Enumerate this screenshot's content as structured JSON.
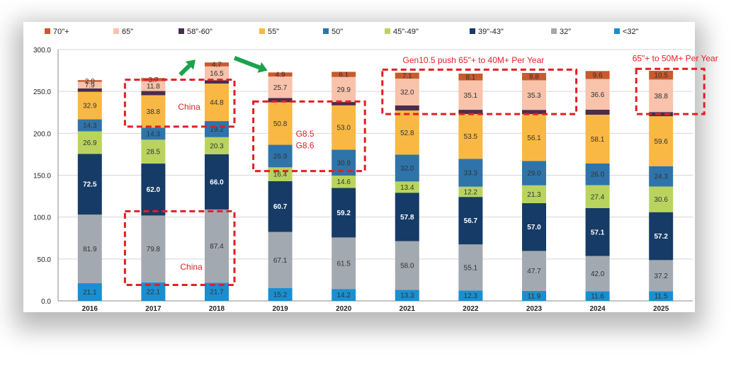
{
  "chart_data": {
    "type": "bar",
    "stacked": true,
    "categories": [
      "2016",
      "2017",
      "2018",
      "2019",
      "2020",
      "2021",
      "2022",
      "2023",
      "2024",
      "2025"
    ],
    "ylim": [
      0,
      300
    ],
    "yticks": [
      "0.0",
      "50.0",
      "100.0",
      "150.0",
      "200.0",
      "250.0",
      "300.0"
    ],
    "grid": true,
    "legend_position": "top",
    "series": [
      {
        "name": "<32\"",
        "color": "#1a8fd0",
        "values": [
          21.1,
          22.1,
          21.7,
          15.2,
          14.2,
          13.3,
          12.3,
          11.9,
          11.6,
          11.5
        ]
      },
      {
        "name": "32\"",
        "color": "#a3a9b0",
        "values": [
          81.9,
          79.8,
          87.4,
          67.1,
          61.5,
          58.0,
          55.1,
          47.7,
          42.0,
          37.2
        ]
      },
      {
        "name": "39\"-43\"",
        "color": "#163b66",
        "values": [
          72.5,
          62.0,
          66.0,
          60.7,
          59.2,
          57.8,
          56.7,
          57.0,
          57.1,
          57.2
        ]
      },
      {
        "name": "45\"-49\"",
        "color": "#b9d45e",
        "values": [
          26.9,
          28.5,
          20.3,
          16.4,
          14.6,
          13.4,
          12.2,
          21.3,
          27.4,
          30.6
        ]
      },
      {
        "name": "50\"",
        "color": "#2e74aa",
        "values": [
          14.3,
          14.3,
          19.2,
          26.9,
          30.9,
          32.0,
          33.3,
          29.0,
          26.0,
          24.3
        ]
      },
      {
        "name": "55\"",
        "color": "#f9b843",
        "values": [
          32.9,
          38.8,
          44.8,
          50.8,
          53.0,
          52.8,
          53.5,
          56.1,
          58.1,
          59.6
        ]
      },
      {
        "name": "58\"-60\"",
        "color": "#4a2c4f",
        "values": [
          4.0,
          5.0,
          4.0,
          5.0,
          4.0,
          6.0,
          5.0,
          5.0,
          6.0,
          5.0
        ]
      },
      {
        "name": "65\"",
        "color": "#f8c2ab",
        "values": [
          7.9,
          11.8,
          16.5,
          25.7,
          29.9,
          32.0,
          35.1,
          35.3,
          36.6,
          38.8
        ]
      },
      {
        "name": "70\"+",
        "color": "#c85a2d",
        "values": [
          2.0,
          3.7,
          4.7,
          4.9,
          6.1,
          7.1,
          8.1,
          8.8,
          9.6,
          10.5
        ]
      }
    ],
    "value_labels": [
      [
        "21.1",
        "81.9",
        "72.5",
        "26.9",
        "14.3",
        "32.9",
        "",
        "7.9",
        "2.0"
      ],
      [
        "22.1",
        "79.8",
        "62.0",
        "28.5",
        "14.3",
        "38.8",
        "",
        "11.8",
        "3.7"
      ],
      [
        "21.7",
        "87.4",
        "66.0",
        "20.3",
        "19.2",
        "44.8",
        "",
        "16.5",
        "4.7"
      ],
      [
        "15.2",
        "67.1",
        "60.7",
        "16.4",
        "26.9",
        "50.8",
        "",
        "25.7",
        "4.9"
      ],
      [
        "14.2",
        "61.5",
        "59.2",
        "14.6",
        "30.9",
        "53.0",
        "",
        "29.9",
        "6.1"
      ],
      [
        "13.3",
        "58.0",
        "57.8",
        "13.4",
        "32.0",
        "52.8",
        "",
        "32.0",
        "7.1"
      ],
      [
        "12.3",
        "55.1",
        "56.7",
        "12.2",
        "33.3",
        "53.5",
        "",
        "35.1",
        "8.1"
      ],
      [
        "11.9",
        "47.7",
        "57.0",
        "21.3",
        "29.0",
        "56.1",
        "",
        "35.3",
        "8.8"
      ],
      [
        "11.6",
        "42.0",
        "57.1",
        "27.4",
        "26.0",
        "58.1",
        "",
        "36.6",
        "9.6"
      ],
      [
        "11.5",
        "37.2",
        "57.2",
        "30.6",
        "24.3",
        "59.6",
        "",
        "38.8",
        "10.5"
      ]
    ],
    "legend_order": [
      "70\"+",
      "65\"",
      "58\"-60\"",
      "55\"",
      "50\"",
      "45\"-49\"",
      "39\"-43\"",
      "32\"",
      "<32\""
    ],
    "annotations": {
      "china": "China",
      "g85": "G8.5",
      "g86": "G8.6",
      "gen105": "Gen10.5 push 65\"+ to 40M+ Per Year",
      "plus65": "65\"+ to 50M+ Per Year"
    }
  },
  "colors": {
    "annotation_red": "#e31e24",
    "arrow_green": "#1aa34a",
    "light_label": "#333333",
    "dark_label": "#ffffff"
  }
}
